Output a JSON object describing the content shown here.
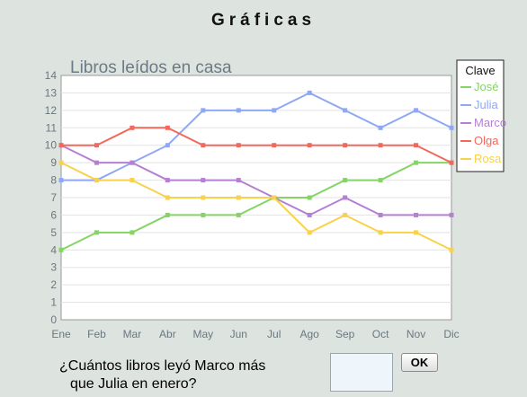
{
  "header": {
    "title": "Gráficas"
  },
  "chart_data": {
    "type": "line",
    "title": "Libros leídos en casa",
    "categories": [
      "Ene",
      "Feb",
      "Mar",
      "Abr",
      "May",
      "Jun",
      "Jul",
      "Ago",
      "Sep",
      "Oct",
      "Nov",
      "Dic"
    ],
    "ylim": [
      0,
      14
    ],
    "yticks": [
      0,
      1,
      2,
      3,
      4,
      5,
      6,
      7,
      8,
      9,
      10,
      11,
      12,
      13,
      14
    ],
    "grid": true,
    "legend": {
      "title": "Clave",
      "placement": "top-right"
    },
    "series": [
      {
        "name": "José",
        "color": "#84d466",
        "values": [
          4,
          5,
          5,
          6,
          6,
          6,
          7,
          7,
          8,
          8,
          9,
          9
        ]
      },
      {
        "name": "Julia",
        "color": "#8ea8f5",
        "values": [
          8,
          8,
          9,
          10,
          12,
          12,
          12,
          13,
          12,
          11,
          12,
          11
        ]
      },
      {
        "name": "Marco",
        "color": "#b57fd3",
        "values": [
          10,
          9,
          9,
          8,
          8,
          8,
          7,
          6,
          7,
          6,
          6,
          6
        ]
      },
      {
        "name": "Olga",
        "color": "#f2695c",
        "values": [
          10,
          10,
          11,
          11,
          10,
          10,
          10,
          10,
          10,
          10,
          10,
          9
        ]
      },
      {
        "name": "Rosa",
        "color": "#f8d24c",
        "values": [
          9,
          8,
          8,
          7,
          7,
          7,
          7,
          5,
          6,
          5,
          5,
          4
        ]
      }
    ]
  },
  "question": {
    "line1": "¿Cuántos libros leyó Marco más",
    "line2": "que Julia en enero?"
  },
  "answer": {
    "value": ""
  },
  "ok_label": "OK"
}
